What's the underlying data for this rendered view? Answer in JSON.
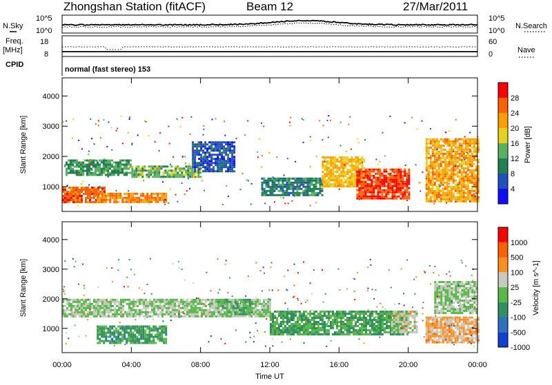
{
  "header": {
    "station": "Zhongshan Station (fitACF)",
    "beam": "Beam 12",
    "date": "27/Mar/2011"
  },
  "top_panel": {
    "left_label": "N.Sky",
    "right_label": "N.Search",
    "left_ticks": [
      "10^5",
      "10^0"
    ],
    "right_ticks": [
      "10^5",
      "10^0"
    ]
  },
  "freq_panel": {
    "left_label_1": "Freq.",
    "left_label_2": "[MHz]",
    "left_ticks": [
      "18",
      "8"
    ],
    "right_ticks": [
      "60",
      "0"
    ],
    "right_label": "Nave",
    "cpid_label": "CPID"
  },
  "mode_text": "normal (fast stereo) 153",
  "power_panel": {
    "ylabel": "Slant Range [km]",
    "yticks": [
      "4000",
      "3000",
      "2000",
      "1000"
    ],
    "colorbar_label": "Power [dB]",
    "colorbar_ticks": [
      "28",
      "24",
      "20",
      "16",
      "12",
      "8",
      "4"
    ],
    "colors": [
      "#1010ff",
      "#2050c0",
      "#208050",
      "#58b060",
      "#e8d020",
      "#ffa000",
      "#ff6000",
      "#ff0000"
    ]
  },
  "velocity_panel": {
    "ylabel": "Slant Range [km]",
    "yticks": [
      "4000",
      "3000",
      "2000",
      "1000"
    ],
    "colorbar_label": "Velocity [m s^-1]",
    "colorbar_ticks": [
      "1000",
      "500",
      "100",
      "25",
      "-25",
      "-100",
      "-500",
      "-1000"
    ],
    "colors": [
      "#1040d0",
      "#3070c0",
      "#309060",
      "#58b848",
      "#c8c8c0",
      "#ff9020",
      "#ff6000",
      "#ff0000"
    ]
  },
  "xaxis": {
    "ticks": [
      "00:00",
      "04:00",
      "08:00",
      "12:00",
      "16:00",
      "20:00",
      "00:00"
    ],
    "label": "Time UT"
  },
  "chart_data": [
    {
      "type": "heatmap",
      "title": "",
      "xlabel": "Time UT",
      "ylabel": "Slant Range [km]",
      "xlim": [
        0,
        24
      ],
      "ylim": [
        180,
        4600
      ],
      "colorbar": {
        "label": "Power [dB]",
        "range": [
          0,
          32
        ]
      },
      "regions": [
        {
          "start": 0.0,
          "end": 2.5,
          "range_low": 500,
          "range_high": 1000,
          "value": 26
        },
        {
          "start": 0.2,
          "end": 4.0,
          "range_low": 1400,
          "range_high": 1900,
          "value": 12
        },
        {
          "start": 2.0,
          "end": 6.0,
          "range_low": 500,
          "range_high": 800,
          "value": 24
        },
        {
          "start": 4.0,
          "end": 8.0,
          "range_low": 1350,
          "range_high": 1700,
          "value": 14
        },
        {
          "start": 7.5,
          "end": 10.0,
          "range_low": 1500,
          "range_high": 2500,
          "value": 6
        },
        {
          "start": 11.5,
          "end": 15.0,
          "range_low": 700,
          "range_high": 1300,
          "value": 10
        },
        {
          "start": 15.0,
          "end": 17.5,
          "range_low": 1000,
          "range_high": 2000,
          "value": 20
        },
        {
          "start": 17.0,
          "end": 20.0,
          "range_low": 600,
          "range_high": 1600,
          "value": 28
        },
        {
          "start": 21.0,
          "end": 24.0,
          "range_low": 500,
          "range_high": 2600,
          "value": 22
        }
      ]
    },
    {
      "type": "heatmap",
      "title": "",
      "xlabel": "Time UT",
      "ylabel": "Slant Range [km]",
      "xlim": [
        0,
        24
      ],
      "ylim": [
        180,
        4600
      ],
      "colorbar": {
        "label": "Velocity [m s^-1]",
        "range": [
          -1000,
          1000
        ]
      },
      "regions": [
        {
          "start": 0.0,
          "end": 12.0,
          "range_low": 1400,
          "range_high": 2000,
          "value": 0
        },
        {
          "start": 2.0,
          "end": 6.0,
          "range_low": 500,
          "range_high": 1100,
          "value": -300
        },
        {
          "start": 9.0,
          "end": 11.0,
          "range_low": 1500,
          "range_high": 2000,
          "value": -150
        },
        {
          "start": 12.0,
          "end": 20.0,
          "range_low": 800,
          "range_high": 1600,
          "value": -250
        },
        {
          "start": 19.0,
          "end": 20.5,
          "range_low": 900,
          "range_high": 1600,
          "value": 100
        },
        {
          "start": 21.0,
          "end": 24.0,
          "range_low": 500,
          "range_high": 1400,
          "value": 300
        },
        {
          "start": 21.5,
          "end": 24.0,
          "range_low": 1500,
          "range_high": 2600,
          "value": 0
        }
      ]
    }
  ]
}
